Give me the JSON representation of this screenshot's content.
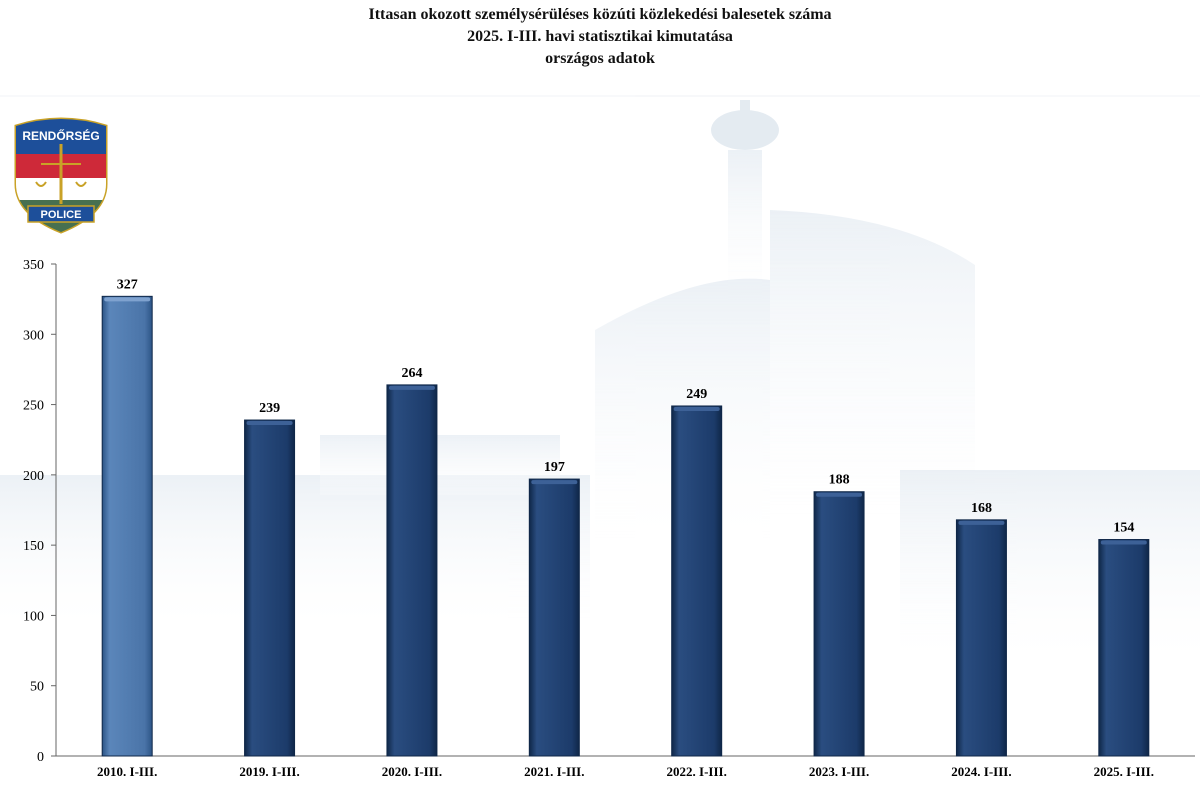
{
  "header": {
    "title_line1": "Ittasan okozott személysérüléses közúti közlekedési balesetek száma",
    "title_line2": "2025. I-III. havi statisztikai kimutatása",
    "title_line3": "országos adatok"
  },
  "logo": {
    "top_text": "RENDŐRSÉG",
    "bottom_text": "POLICE"
  },
  "colors": {
    "highlight_bar": "#4a74a8",
    "bar": "#1c3b6a",
    "bar_edge": "#0f2748",
    "axis": "#666666",
    "background_building": "#c9d6e3"
  },
  "chart_data": {
    "type": "bar",
    "title": "Ittasan okozott személysérüléses közúti közlekedési balesetek száma",
    "subtitle": "2025. I-III. havi statisztikai kimutatása",
    "categories": [
      "2010. I-III.",
      "2019. I-III.",
      "2020. I-III.",
      "2021. I-III.",
      "2022. I-III.",
      "2023. I-III.",
      "2024. I-III.",
      "2025. I-III."
    ],
    "values": [
      327,
      239,
      264,
      197,
      249,
      188,
      168,
      154
    ],
    "highlight_index": 0,
    "ylim": [
      0,
      350
    ],
    "yticks": [
      0,
      50,
      100,
      150,
      200,
      250,
      300,
      350
    ],
    "xlabel": "",
    "ylabel": "",
    "grid": false,
    "data_labels": true
  }
}
